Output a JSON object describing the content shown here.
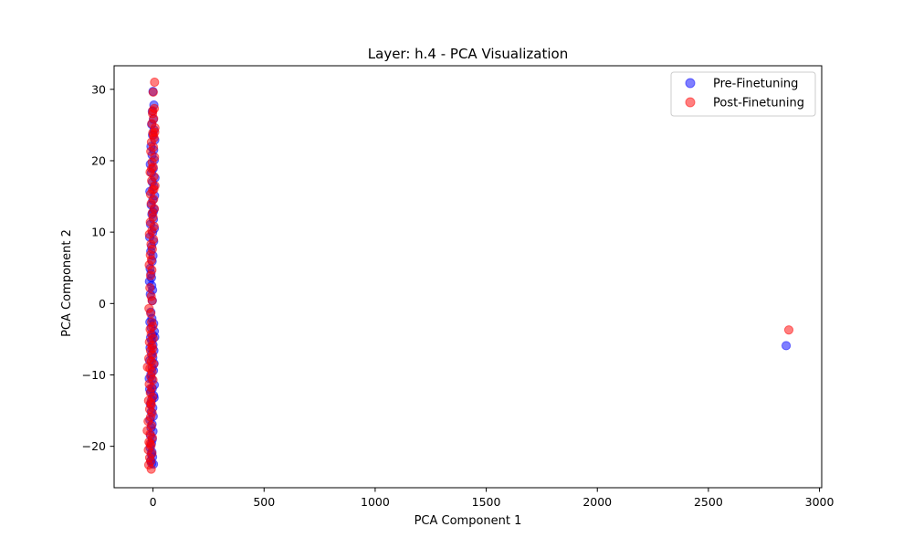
{
  "chart_data": {
    "type": "scatter",
    "title": "Layer: h.4 - PCA Visualization",
    "xlabel": "PCA Component 1",
    "ylabel": "PCA Component 2",
    "xlim": [
      -175,
      3010
    ],
    "ylim": [
      -25.8,
      33.3
    ],
    "xticks": [
      0,
      500,
      1000,
      1500,
      2000,
      2500,
      3000
    ],
    "yticks": [
      -20,
      -10,
      0,
      10,
      20,
      30
    ],
    "legend_position": "upper-right",
    "grid": false,
    "series": [
      {
        "name": "Pre-Finetuning",
        "color": "#0000ff",
        "points": [
          [
            0,
            29.7
          ],
          [
            4,
            27.8
          ],
          [
            -3,
            26.9
          ],
          [
            2,
            25.8
          ],
          [
            -6,
            25.1
          ],
          [
            5,
            24.3
          ],
          [
            -2,
            23.6
          ],
          [
            8,
            22.9
          ],
          [
            -9,
            22.0
          ],
          [
            3,
            21.5
          ],
          [
            -4,
            20.8
          ],
          [
            6,
            20.1
          ],
          [
            -12,
            19.5
          ],
          [
            1,
            18.9
          ],
          [
            -7,
            18.3
          ],
          [
            9,
            17.6
          ],
          [
            -3,
            17.0
          ],
          [
            4,
            16.4
          ],
          [
            -14,
            15.7
          ],
          [
            7,
            15.1
          ],
          [
            -1,
            14.5
          ],
          [
            -8,
            13.8
          ],
          [
            5,
            13.2
          ],
          [
            -5,
            12.5
          ],
          [
            2,
            11.8
          ],
          [
            -11,
            11.1
          ],
          [
            6,
            10.5
          ],
          [
            -2,
            9.9
          ],
          [
            -15,
            9.3
          ],
          [
            3,
            8.7
          ],
          [
            -6,
            8.0
          ],
          [
            -10,
            7.3
          ],
          [
            0,
            6.7
          ],
          [
            -4,
            5.9
          ],
          [
            -13,
            4.9
          ],
          [
            -9,
            4.2
          ],
          [
            -16,
            3.1
          ],
          [
            -6,
            2.5
          ],
          [
            -12,
            1.3
          ],
          [
            -3,
            0.4
          ],
          [
            -10,
            -1.2
          ],
          [
            -5,
            -2.1
          ],
          [
            -14,
            -2.6
          ],
          [
            3,
            -2.8
          ],
          [
            -8,
            -3.4
          ],
          [
            6,
            -3.9
          ],
          [
            -2,
            -4.4
          ],
          [
            -11,
            -4.8
          ],
          [
            8,
            -4.7
          ],
          [
            -6,
            -5.2
          ],
          [
            0,
            -5.8
          ],
          [
            -13,
            -6.2
          ],
          [
            4,
            -6.6
          ],
          [
            -7,
            -7.1
          ],
          [
            -1,
            -7.6
          ],
          [
            -15,
            -8.0
          ],
          [
            5,
            -8.4
          ],
          [
            -4,
            -9.0
          ],
          [
            2,
            -9.4
          ],
          [
            -9,
            -9.9
          ],
          [
            -17,
            -10.5
          ],
          [
            6,
            -11.4
          ],
          [
            -3,
            -11.9
          ],
          [
            -10,
            -12.4
          ],
          [
            3,
            -12.9
          ],
          [
            -6,
            -13.5
          ],
          [
            5,
            -13.2
          ],
          [
            -12,
            -14.1
          ],
          [
            -1,
            -14.6
          ],
          [
            -8,
            -15.2
          ],
          [
            1,
            -15.8
          ],
          [
            -14,
            -16.3
          ],
          [
            -4,
            -16.9
          ],
          [
            -9,
            -17.4
          ],
          [
            0,
            -17.9
          ],
          [
            -11,
            -18.5
          ],
          [
            -3,
            -19.0
          ],
          [
            -7,
            -19.6
          ],
          [
            -13,
            -20.2
          ],
          [
            -5,
            -20.8
          ],
          [
            -2,
            -21.5
          ],
          [
            -10,
            -22.0
          ],
          [
            -6,
            -22.4
          ],
          [
            2,
            -22.5
          ],
          [
            -8,
            -21.1
          ],
          [
            -15,
            -12.0
          ],
          [
            -5,
            -10.6
          ],
          [
            -2,
            1.9
          ],
          [
            -7,
            3.6
          ],
          [
            1,
            12.8
          ],
          [
            2850,
            -5.9
          ]
        ]
      },
      {
        "name": "Post-Finetuning",
        "color": "#ff0000",
        "points": [
          [
            7,
            31.0
          ],
          [
            1,
            29.6
          ],
          [
            6,
            27.3
          ],
          [
            -2,
            26.6
          ],
          [
            3,
            25.9
          ],
          [
            -5,
            25.2
          ],
          [
            9,
            24.6
          ],
          [
            -1,
            23.9
          ],
          [
            5,
            23.2
          ],
          [
            -7,
            22.6
          ],
          [
            2,
            21.9
          ],
          [
            -10,
            21.3
          ],
          [
            7,
            20.5
          ],
          [
            -4,
            19.8
          ],
          [
            1,
            19.1
          ],
          [
            -13,
            18.4
          ],
          [
            4,
            17.8
          ],
          [
            -6,
            17.2
          ],
          [
            9,
            16.5
          ],
          [
            -2,
            15.9
          ],
          [
            -11,
            15.3
          ],
          [
            3,
            14.6
          ],
          [
            -8,
            14.0
          ],
          [
            6,
            13.3
          ],
          [
            -3,
            12.7
          ],
          [
            0,
            12.1
          ],
          [
            -12,
            11.4
          ],
          [
            5,
            10.8
          ],
          [
            -5,
            10.2
          ],
          [
            -16,
            9.7
          ],
          [
            2,
            9.0
          ],
          [
            -9,
            8.3
          ],
          [
            -3,
            7.6
          ],
          [
            -12,
            6.8
          ],
          [
            -7,
            6.1
          ],
          [
            -17,
            5.4
          ],
          [
            -5,
            4.7
          ],
          [
            -11,
            3.9
          ],
          [
            -14,
            2.2
          ],
          [
            -8,
            1.0
          ],
          [
            -4,
            0.4
          ],
          [
            -18,
            -0.7
          ],
          [
            -10,
            -1.4
          ],
          [
            -6,
            -2.6
          ],
          [
            -1,
            -3.2
          ],
          [
            -13,
            -3.6
          ],
          [
            -8,
            -4.3
          ],
          [
            1,
            -4.9
          ],
          [
            -16,
            -5.4
          ],
          [
            -5,
            -5.9
          ],
          [
            -11,
            -6.6
          ],
          [
            -2,
            -7.2
          ],
          [
            -19,
            -7.7
          ],
          [
            -7,
            -8.1
          ],
          [
            3,
            -8.5
          ],
          [
            -14,
            -9.1
          ],
          [
            -25,
            -8.9
          ],
          [
            -4,
            -9.6
          ],
          [
            -10,
            -10.2
          ],
          [
            0,
            -10.7
          ],
          [
            -17,
            -11.3
          ],
          [
            -6,
            -11.8
          ],
          [
            -12,
            -12.5
          ],
          [
            -2,
            -13.1
          ],
          [
            -20,
            -13.6
          ],
          [
            -8,
            -14.2
          ],
          [
            -15,
            -14.8
          ],
          [
            -4,
            -15.3
          ],
          [
            -11,
            -15.9
          ],
          [
            -22,
            -16.5
          ],
          [
            -7,
            -17.1
          ],
          [
            -26,
            -17.8
          ],
          [
            -13,
            -18.3
          ],
          [
            -3,
            -18.8
          ],
          [
            -18,
            -19.4
          ],
          [
            -9,
            -19.9
          ],
          [
            -21,
            -20.5
          ],
          [
            -5,
            -21.0
          ],
          [
            -15,
            -21.6
          ],
          [
            -10,
            -22.1
          ],
          [
            -19,
            -22.6
          ],
          [
            -8,
            -23.2
          ],
          [
            -2,
            -6.3
          ],
          [
            -9,
            -13.9
          ],
          [
            4,
            16.0
          ],
          [
            -6,
            18.9
          ],
          [
            2,
            23.6
          ],
          [
            -13,
            -19.6
          ],
          [
            -1,
            27.0
          ],
          [
            8,
            24.0
          ],
          [
            2862,
            -3.7
          ]
        ]
      }
    ]
  }
}
